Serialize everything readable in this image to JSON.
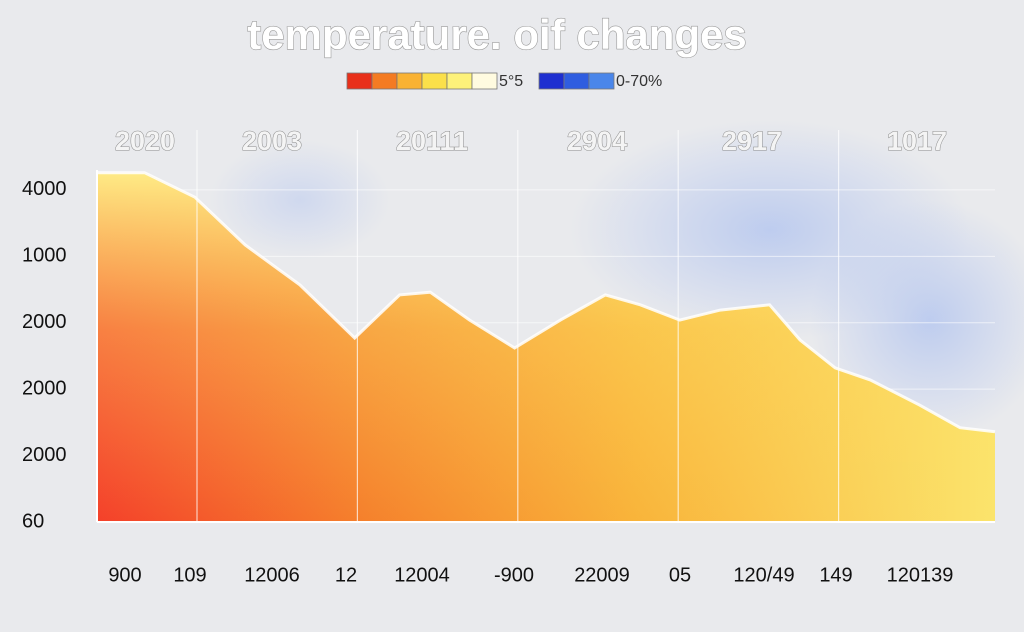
{
  "chart_data": {
    "type": "area",
    "title": "temperature. oif changes",
    "legend": [
      {
        "label": "5°5",
        "colors": [
          "#e8301a",
          "#f47b22",
          "#f9b233",
          "#fbe04a",
          "#fdf27a",
          "#fffbe0"
        ]
      },
      {
        "label": "0-70%",
        "colors": [
          "#1e2fd0",
          "#2f5de0",
          "#4a86ea"
        ]
      }
    ],
    "column_labels": [
      "2020",
      "2003",
      "20111",
      "2904",
      "2917",
      "1017"
    ],
    "x_labels": [
      "900",
      "109",
      "12006",
      "12",
      "12004",
      "-900",
      "22009",
      "05",
      "120/49",
      "149",
      "120139"
    ],
    "x": [
      0,
      5.3,
      10.9,
      16.5,
      22.6,
      28.7,
      33.7,
      37.1,
      41.5,
      46.5,
      51.6,
      56.6,
      60.5,
      64.9,
      69.4,
      74.9,
      78.3,
      82.2,
      86.1,
      91.6,
      96.1,
      100
    ],
    "values": [
      5.26,
      5.26,
      4.89,
      4.17,
      3.57,
      2.77,
      3.42,
      3.46,
      3.04,
      2.62,
      3.04,
      3.42,
      3.27,
      3.04,
      3.19,
      3.27,
      2.74,
      2.32,
      2.14,
      1.76,
      1.42,
      1.36
    ],
    "xlim": [
      0,
      100
    ],
    "ylim": [
      0,
      5.3
    ],
    "yticks": [
      {
        "value": 0,
        "label": "60"
      },
      {
        "value": 1,
        "label": "2000"
      },
      {
        "value": 2,
        "label": "2000"
      },
      {
        "value": 3,
        "label": "2000"
      },
      {
        "value": 4,
        "label": "1000"
      },
      {
        "value": 5,
        "label": "4000"
      }
    ],
    "grid": true
  }
}
